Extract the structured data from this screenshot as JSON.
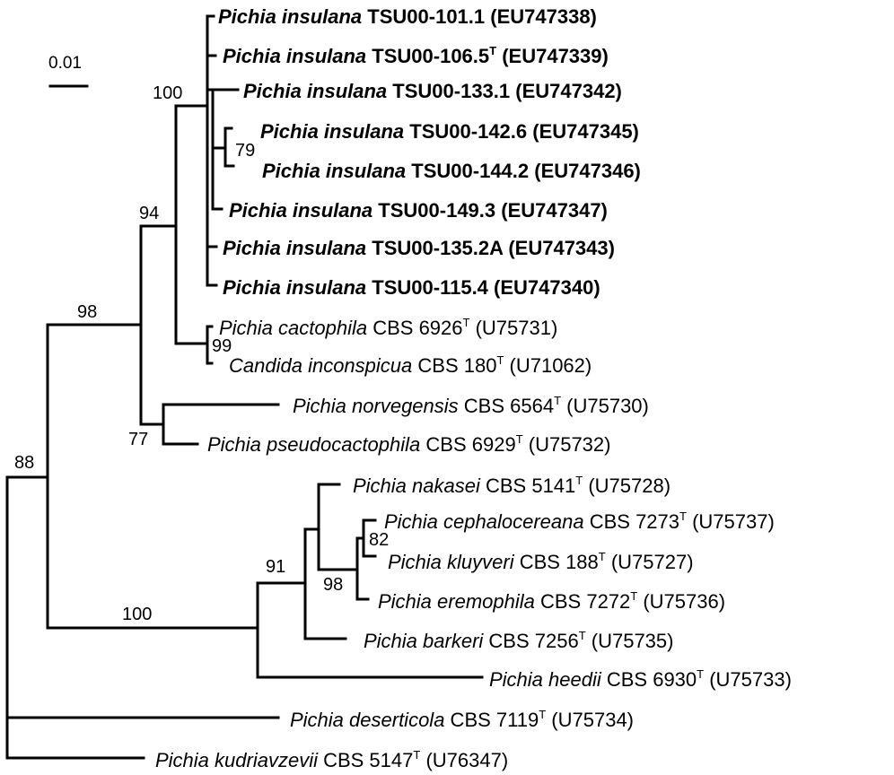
{
  "scale_bar": {
    "label": "0.01"
  },
  "taxa": [
    {
      "id": "t1",
      "species": "Pichia insulana",
      "strain": "TSU00-101.1",
      "type_strain": false,
      "accession": "(EU747338)",
      "bold": true
    },
    {
      "id": "t2",
      "species": "Pichia insulana",
      "strain": "TSU00-106.5",
      "type_strain": true,
      "accession": "(EU747339)",
      "bold": true
    },
    {
      "id": "t3",
      "species": "Pichia insulana",
      "strain": "TSU00-133.1",
      "type_strain": false,
      "accession": "(EU747342)",
      "bold": true
    },
    {
      "id": "t4",
      "species": "Pichia insulana",
      "strain": "TSU00-142.6",
      "type_strain": false,
      "accession": "(EU747345)",
      "bold": true
    },
    {
      "id": "t5",
      "species": "Pichia insulana",
      "strain": "TSU00-144.2",
      "type_strain": false,
      "accession": "(EU747346)",
      "bold": true
    },
    {
      "id": "t6",
      "species": "Pichia insulana",
      "strain": "TSU00-149.3",
      "type_strain": false,
      "accession": "(EU747347)",
      "bold": true
    },
    {
      "id": "t7",
      "species": "Pichia insulana",
      "strain": "TSU00-135.2A",
      "type_strain": false,
      "accession": "(EU747343)",
      "bold": true
    },
    {
      "id": "t8",
      "species": "Pichia insulana",
      "strain": "TSU00-115.4",
      "type_strain": false,
      "accession": "(EU747340)",
      "bold": true
    },
    {
      "id": "t9",
      "species": "Pichia cactophila",
      "strain": "CBS 6926",
      "type_strain": true,
      "accession": "(U75731)",
      "bold": false
    },
    {
      "id": "t10",
      "species": "Candida inconspicua",
      "strain": "CBS 180",
      "type_strain": true,
      "accession": "(U71062)",
      "bold": false
    },
    {
      "id": "t11",
      "species": "Pichia norvegensis",
      "strain": "CBS 6564",
      "type_strain": true,
      "accession": "(U75730)",
      "bold": false
    },
    {
      "id": "t12",
      "species": "Pichia pseudocactophila",
      "strain": "CBS 6929",
      "type_strain": true,
      "accession": "(U75732)",
      "bold": false
    },
    {
      "id": "t13",
      "species": "Pichia nakasei",
      "strain": "CBS 5141",
      "type_strain": true,
      "accession": "(U75728)",
      "bold": false
    },
    {
      "id": "t14",
      "species": "Pichia cephalocereana",
      "strain": "CBS 7273",
      "type_strain": true,
      "accession": "(U75737)",
      "bold": false
    },
    {
      "id": "t15",
      "species": "Pichia kluyveri",
      "strain": "CBS 188",
      "type_strain": true,
      "accession": "(U75727)",
      "bold": false
    },
    {
      "id": "t16",
      "species": "Pichia eremophila",
      "strain": "CBS 7272",
      "type_strain": true,
      "accession": "(U75736)",
      "bold": false
    },
    {
      "id": "t17",
      "species": "Pichia barkeri",
      "strain": "CBS 7256",
      "type_strain": true,
      "accession": "(U75735)",
      "bold": false
    },
    {
      "id": "t18",
      "species": "Pichia heedii",
      "strain": "CBS 6930",
      "type_strain": true,
      "accession": "(U75733)",
      "bold": false
    },
    {
      "id": "t19",
      "species": "Pichia deserticola",
      "strain": "CBS 7119",
      "type_strain": true,
      "accession": "(U75734)",
      "bold": false
    },
    {
      "id": "t20",
      "species": "Pichia kudriavzevii",
      "strain": "CBS 5147",
      "type_strain": true,
      "accession": "(U76347)",
      "bold": false
    }
  ],
  "bootstrap": [
    {
      "id": "b_insulana",
      "value": "100"
    },
    {
      "id": "b_142_144",
      "value": "79"
    },
    {
      "id": "b_94",
      "value": "94"
    },
    {
      "id": "b_cacto",
      "value": "99"
    },
    {
      "id": "b_98a",
      "value": "98"
    },
    {
      "id": "b_77",
      "value": "77"
    },
    {
      "id": "b_88",
      "value": "88"
    },
    {
      "id": "b_91",
      "value": "91"
    },
    {
      "id": "b_82",
      "value": "82"
    },
    {
      "id": "b_98b",
      "value": "98"
    },
    {
      "id": "b_100b",
      "value": "100"
    }
  ],
  "type_mark": "T"
}
